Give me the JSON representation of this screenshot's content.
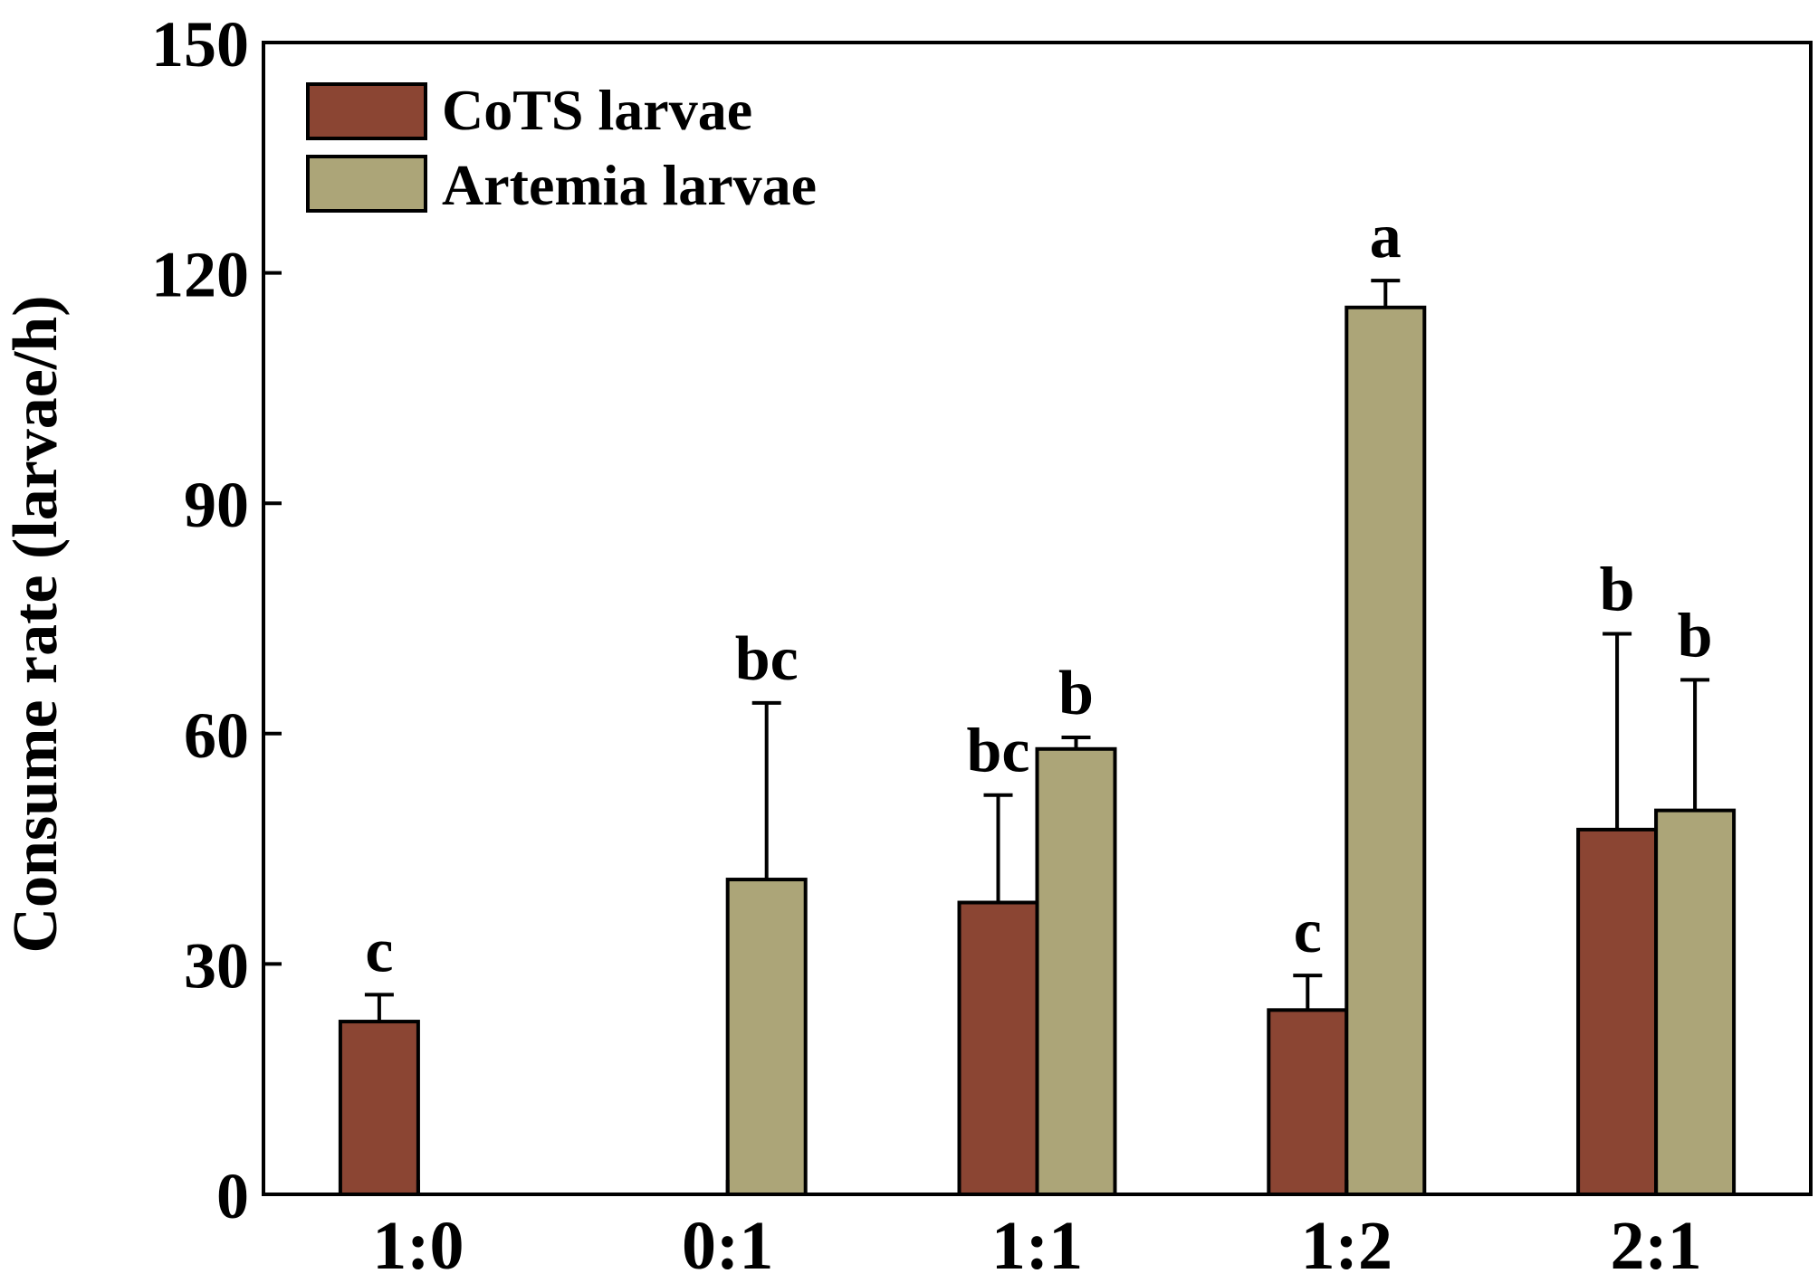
{
  "chart_data": {
    "type": "bar",
    "title": "",
    "xlabel": "",
    "ylabel": "Consume rate (larvae/h)",
    "ylim": [
      0,
      150
    ],
    "yticks": [
      0,
      30,
      60,
      90,
      120,
      150
    ],
    "grid": false,
    "legend_position": "top-left",
    "categories": [
      "1:0",
      "0:1",
      "1:1",
      "1:2",
      "2:1"
    ],
    "series": [
      {
        "name": "CoTS larvae",
        "color": "#8b4533",
        "values": [
          22.5,
          null,
          38,
          24,
          47.5
        ],
        "errors": [
          3.5,
          null,
          14,
          4.5,
          25.5
        ],
        "letters": [
          "c",
          "",
          "bc",
          "c",
          "b"
        ]
      },
      {
        "name": "Artemia larvae",
        "color": "#aca578",
        "values": [
          null,
          41,
          58,
          115.5,
          50
        ],
        "errors": [
          null,
          23,
          1.5,
          3.5,
          17
        ],
        "letters": [
          "",
          "bc",
          "b",
          "a",
          "b"
        ]
      }
    ]
  }
}
